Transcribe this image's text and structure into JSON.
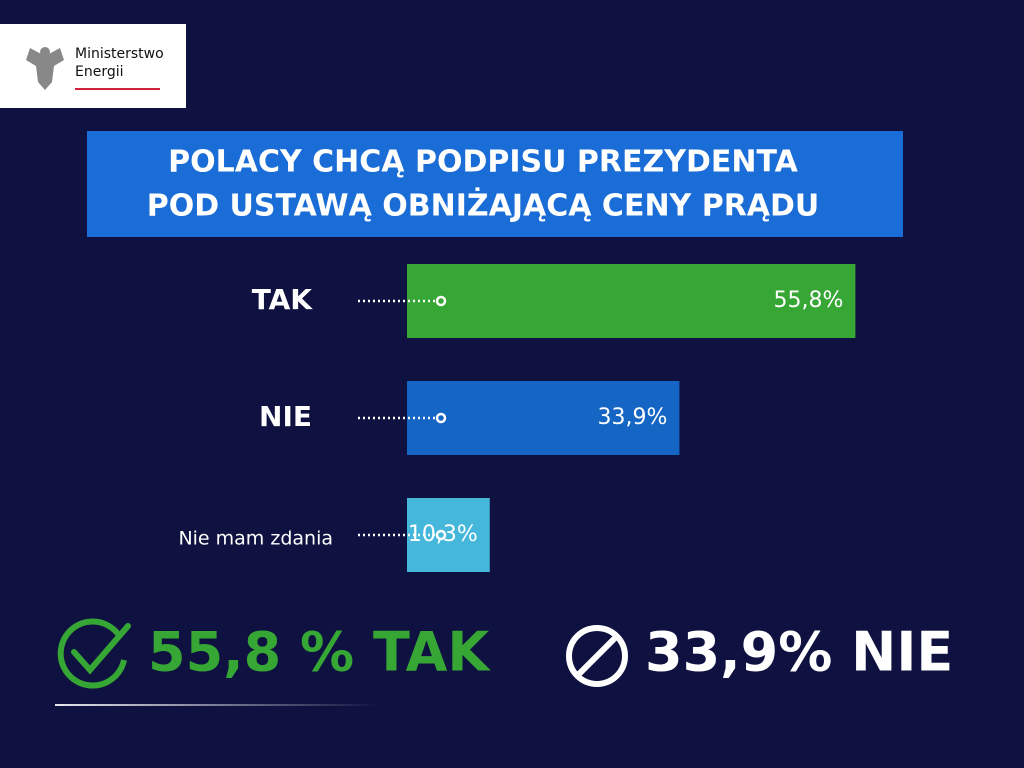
{
  "logo": [
    "Ministerstwo",
    "Energii"
  ],
  "chart_data": {
    "type": "hbar",
    "title_lines": [
      "POLACY CHCĄ PODPISU PREZYDENTA",
      "POD USTAWĄ OBNIŻAJĄCĄ CENY PRĄDU"
    ],
    "categories": [
      "TAK",
      "NIE",
      "Nie mam zdania"
    ],
    "values": [
      55.8,
      33.9,
      10.3
    ],
    "value_labels": [
      "55,8%",
      "33,9%",
      "10,3%"
    ],
    "colors": [
      "#36a635",
      "#1565c4",
      "#45b7da"
    ]
  },
  "summary": [
    "55,8 % TAK",
    "33,9% NIE"
  ]
}
